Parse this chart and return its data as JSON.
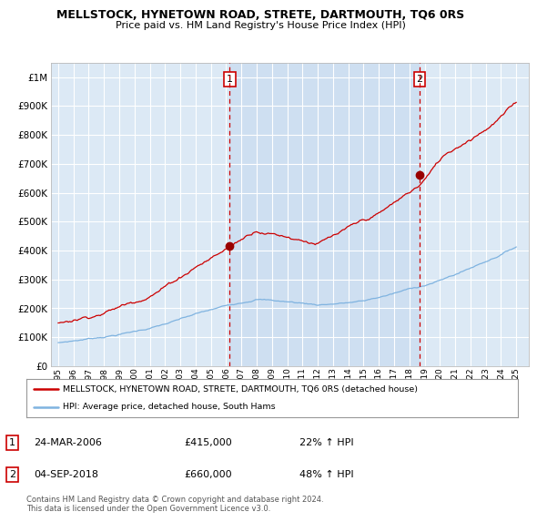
{
  "title": "MELLSTOCK, HYNETOWN ROAD, STRETE, DARTMOUTH, TQ6 0RS",
  "subtitle": "Price paid vs. HM Land Registry's House Price Index (HPI)",
  "plot_bg_color": "#dce9f5",
  "ylim": [
    0,
    1050000
  ],
  "ytick_vals": [
    0,
    100000,
    200000,
    300000,
    400000,
    500000,
    600000,
    700000,
    800000,
    900000,
    1000000
  ],
  "ytick_labels": [
    "£0",
    "£100K",
    "£200K",
    "£300K",
    "£400K",
    "£500K",
    "£600K",
    "£700K",
    "£800K",
    "£900K",
    "£1M"
  ],
  "xlim_left": 1994.5,
  "xlim_right": 2025.8,
  "sale1_x": 2006.23,
  "sale1_y": 415000,
  "sale2_x": 2018.67,
  "sale2_y": 660000,
  "sale1_label": "24-MAR-2006",
  "sale1_price": "£415,000",
  "sale1_hpi": "22% ↑ HPI",
  "sale2_label": "04-SEP-2018",
  "sale2_price": "£660,000",
  "sale2_hpi": "48% ↑ HPI",
  "legend_line1": "MELLSTOCK, HYNETOWN ROAD, STRETE, DARTMOUTH, TQ6 0RS (detached house)",
  "legend_line2": "HPI: Average price, detached house, South Hams",
  "footer": "Contains HM Land Registry data © Crown copyright and database right 2024.\nThis data is licensed under the Open Government Licence v3.0.",
  "hpi_color": "#7fb3e0",
  "price_color": "#cc0000",
  "vline_color": "#cc0000",
  "shade_color": "#c5d9ef"
}
